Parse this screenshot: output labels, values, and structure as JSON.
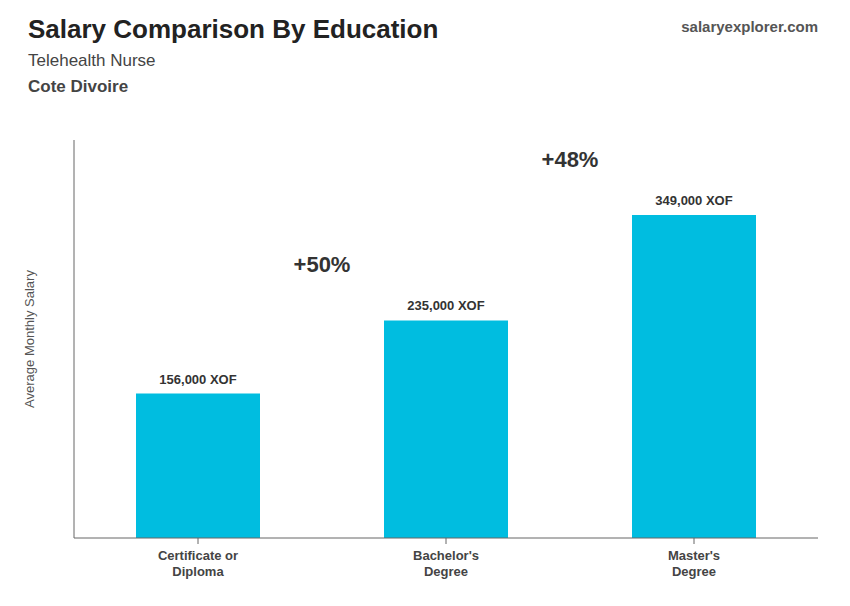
{
  "chart_data": {
    "type": "bar",
    "title": "Salary Comparison By Education",
    "subtitle": [
      "Telehealth Nurse",
      "Cote Divoire"
    ],
    "ylabel": "Average Monthly Salary",
    "categories": [
      "Certificate or\nDiploma",
      "Bachelor's\nDegree",
      "Master's\nDegree"
    ],
    "values": [
      156000,
      235000,
      349000
    ],
    "value_labels": [
      "156,000 XOF",
      "235,000 XOF",
      "349,000 XOF"
    ],
    "data_labels": true,
    "color": "#00bde0",
    "ylim": [
      0,
      430000
    ],
    "tick_labels": "x",
    "grid": false,
    "annotations": [
      "+50%",
      "+48%"
    ],
    "source": "salaryexplorer.com"
  }
}
